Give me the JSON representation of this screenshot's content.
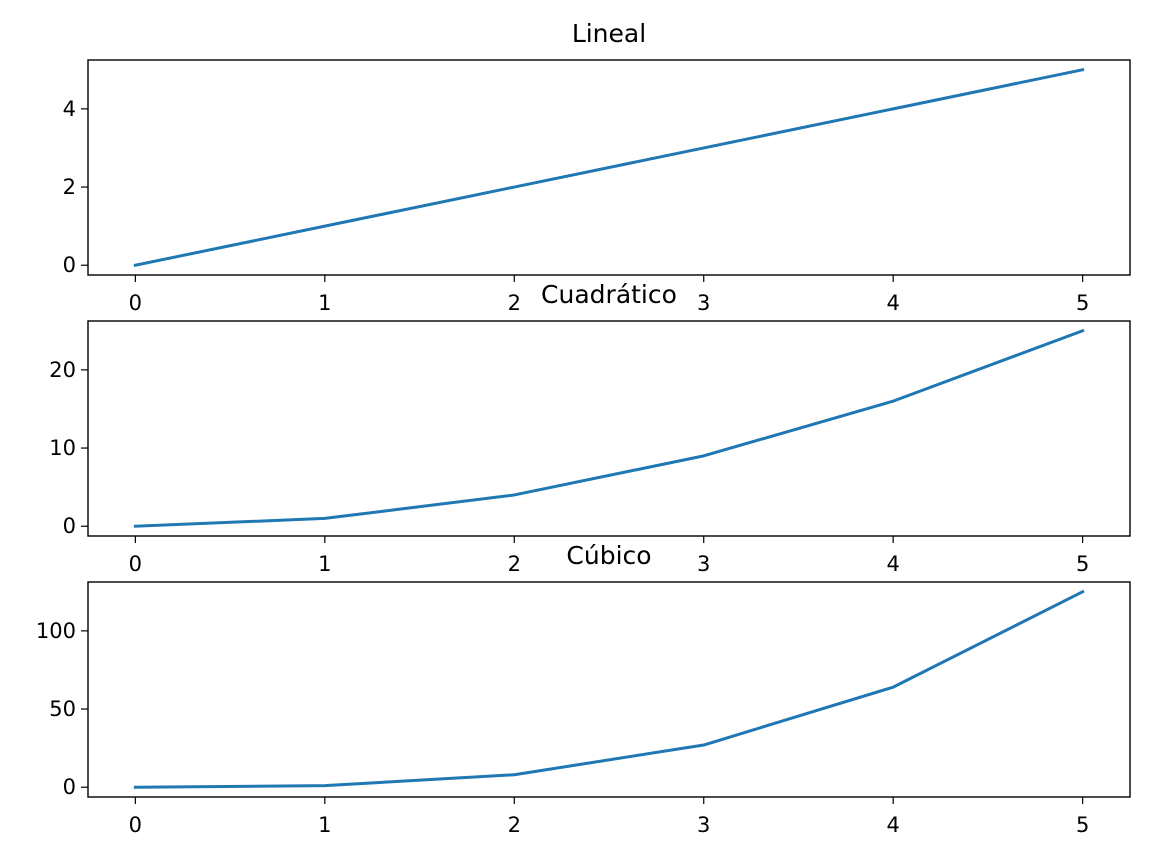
{
  "chart_data": [
    {
      "type": "line",
      "title": "Lineal",
      "x": [
        0,
        1,
        2,
        3,
        4,
        5
      ],
      "y": [
        0,
        1,
        2,
        3,
        4,
        5
      ],
      "xlim": [
        -0.25,
        5.25
      ],
      "ylim": [
        -0.25,
        5.25
      ],
      "xticks": [
        0,
        1,
        2,
        3,
        4,
        5
      ],
      "yticks": [
        0,
        2,
        4
      ],
      "grid": false,
      "color": "#1f77b4"
    },
    {
      "type": "line",
      "title": "Cuadrático",
      "x": [
        0,
        1,
        2,
        3,
        4,
        5
      ],
      "y": [
        0,
        1,
        4,
        9,
        16,
        25
      ],
      "xlim": [
        -0.25,
        5.25
      ],
      "ylim": [
        -1.25,
        26.25
      ],
      "xticks": [
        0,
        1,
        2,
        3,
        4,
        5
      ],
      "yticks": [
        0,
        10,
        20
      ],
      "grid": false,
      "color": "#1f77b4"
    },
    {
      "type": "line",
      "title": "Cúbico",
      "x": [
        0,
        1,
        2,
        3,
        4,
        5
      ],
      "y": [
        0,
        1,
        8,
        27,
        64,
        125
      ],
      "xlim": [
        -0.25,
        5.25
      ],
      "ylim": [
        -6.25,
        131.25
      ],
      "xticks": [
        0,
        1,
        2,
        3,
        4,
        5
      ],
      "yticks": [
        0,
        50,
        100
      ],
      "grid": false,
      "color": "#1f77b4"
    }
  ]
}
